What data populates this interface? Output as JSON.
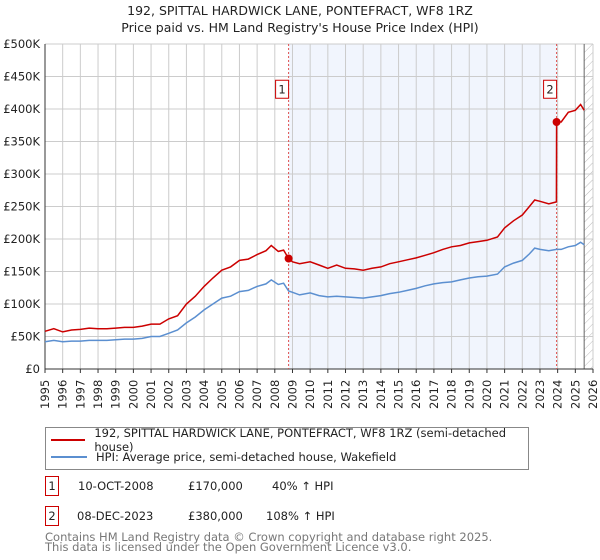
{
  "title": "192, SPITTAL HARDWICK LANE, PONTEFRACT, WF8 1RZ",
  "subtitle": "Price paid vs. HM Land Registry's House Price Index (HPI)",
  "chart_data": {
    "type": "line",
    "title": "192, SPITTAL HARDWICK LANE, PONTEFRACT, WF8 1RZ — Price paid vs. HM Land Registry's House Price Index (HPI)",
    "xlim": [
      1995,
      2026
    ],
    "ylim": [
      0,
      500000
    ],
    "grid": true,
    "x_ticks": [
      "1995",
      "1996",
      "1997",
      "1998",
      "1999",
      "2000",
      "2001",
      "2002",
      "2003",
      "2004",
      "2005",
      "2006",
      "2007",
      "2008",
      "2009",
      "2010",
      "2011",
      "2012",
      "2013",
      "2014",
      "2015",
      "2016",
      "2017",
      "2018",
      "2019",
      "2020",
      "2021",
      "2022",
      "2023",
      "2024",
      "2025",
      "2026"
    ],
    "y_ticks": [
      {
        "value": 0,
        "label": "£0"
      },
      {
        "value": 50000,
        "label": "£50K"
      },
      {
        "value": 100000,
        "label": "£100K"
      },
      {
        "value": 150000,
        "label": "£150K"
      },
      {
        "value": 200000,
        "label": "£200K"
      },
      {
        "value": 250000,
        "label": "£250K"
      },
      {
        "value": 300000,
        "label": "£300K"
      },
      {
        "value": 350000,
        "label": "£350K"
      },
      {
        "value": 400000,
        "label": "£400K"
      },
      {
        "value": 450000,
        "label": "£450K"
      },
      {
        "value": 500000,
        "label": "£500K"
      }
    ],
    "shaded_range": [
      2008.78,
      2023.94
    ],
    "hatched_from": 2025.5,
    "series": [
      {
        "name": "192, SPITTAL HARDWICK LANE, PONTEFRACT, WF8 1RZ (semi-detached house)",
        "color": "#cc0000",
        "x": [
          1995,
          1995.5,
          1996,
          1996.5,
          1997,
          1997.5,
          1998,
          1998.5,
          1999,
          1999.5,
          2000,
          2000.5,
          2001,
          2001.5,
          2002,
          2002.5,
          2003,
          2003.5,
          2004,
          2004.5,
          2005,
          2005.5,
          2006,
          2006.5,
          2007,
          2007.5,
          2007.8,
          2008.2,
          2008.5,
          2008.78,
          2009,
          2009.4,
          2010,
          2010.5,
          2011,
          2011.5,
          2012,
          2012.5,
          2013,
          2013.5,
          2014,
          2014.5,
          2015,
          2015.5,
          2016,
          2016.5,
          2017,
          2017.5,
          2018,
          2018.5,
          2019,
          2019.5,
          2020,
          2020.6,
          2021,
          2021.5,
          2022,
          2022.4,
          2022.7,
          2023,
          2023.5,
          2023.93,
          2023.94,
          2024.2,
          2024.6,
          2025,
          2025.3,
          2025.5
        ],
        "y": [
          58000,
          62000,
          57000,
          60000,
          61000,
          63000,
          62000,
          62000,
          63000,
          64000,
          64000,
          66000,
          69000,
          69000,
          77000,
          82000,
          100000,
          112000,
          127000,
          140000,
          152000,
          157000,
          167000,
          169000,
          176000,
          182000,
          190000,
          181000,
          183000,
          170000,
          165000,
          162000,
          165000,
          160000,
          155000,
          160000,
          155000,
          154000,
          152000,
          155000,
          157000,
          162000,
          165000,
          168000,
          171000,
          175000,
          179000,
          184000,
          188000,
          190000,
          194000,
          196000,
          198000,
          203000,
          217000,
          228000,
          237000,
          250000,
          260000,
          258000,
          254000,
          257000,
          380000,
          380000,
          395000,
          398000,
          407000,
          398000
        ]
      },
      {
        "name": "HPI: Average price, semi-detached house, Wakefield",
        "color": "#5b8fd0",
        "x": [
          1995,
          1995.5,
          1996,
          1996.5,
          1997,
          1997.5,
          1998,
          1998.5,
          1999,
          1999.5,
          2000,
          2000.5,
          2001,
          2001.5,
          2002,
          2002.5,
          2003,
          2003.5,
          2004,
          2004.5,
          2005,
          2005.5,
          2006,
          2006.5,
          2007,
          2007.5,
          2007.8,
          2008.2,
          2008.5,
          2008.78,
          2009,
          2009.4,
          2010,
          2010.5,
          2011,
          2011.5,
          2012,
          2012.5,
          2013,
          2013.5,
          2014,
          2014.5,
          2015,
          2015.5,
          2016,
          2016.5,
          2017,
          2017.5,
          2018,
          2018.5,
          2019,
          2019.5,
          2020,
          2020.6,
          2021,
          2021.5,
          2022,
          2022.4,
          2022.7,
          2023,
          2023.5,
          2023.93,
          2024.2,
          2024.6,
          2025,
          2025.3,
          2025.5
        ],
        "y": [
          42000,
          44000,
          42000,
          43000,
          43000,
          44000,
          44000,
          44000,
          45000,
          46000,
          46000,
          47000,
          50000,
          50000,
          55000,
          60000,
          71000,
          80000,
          91000,
          100000,
          109000,
          112000,
          119000,
          121000,
          127000,
          131000,
          137000,
          130000,
          132000,
          120000,
          118000,
          114000,
          117000,
          113000,
          111000,
          112000,
          111000,
          110000,
          109000,
          111000,
          113000,
          116000,
          118000,
          121000,
          124000,
          128000,
          131000,
          133000,
          134000,
          137000,
          140000,
          142000,
          143000,
          146000,
          157000,
          163000,
          167000,
          177000,
          186000,
          184000,
          182000,
          184000,
          184000,
          188000,
          190000,
          195000,
          191000
        ]
      }
    ],
    "annotations": [
      {
        "label": "1",
        "x": 2008.78,
        "y": 170000
      },
      {
        "label": "2",
        "x": 2023.94,
        "y": 380000
      }
    ]
  },
  "legend": {
    "items": [
      {
        "label": "192, SPITTAL HARDWICK LANE, PONTEFRACT, WF8 1RZ (semi-detached house)",
        "color": "#cc0000"
      },
      {
        "label": "HPI: Average price, semi-detached house, Wakefield",
        "color": "#5b8fd0"
      }
    ]
  },
  "transactions": [
    {
      "num": "1",
      "date": "10-OCT-2008",
      "price": "£170,000",
      "hpi": "40% ↑ HPI"
    },
    {
      "num": "2",
      "date": "08-DEC-2023",
      "price": "£380,000",
      "hpi": "108% ↑ HPI"
    }
  ],
  "footer": {
    "line1": "Contains HM Land Registry data © Crown copyright and database right 2025.",
    "line2": "This data is licensed under the Open Government Licence v3.0."
  }
}
